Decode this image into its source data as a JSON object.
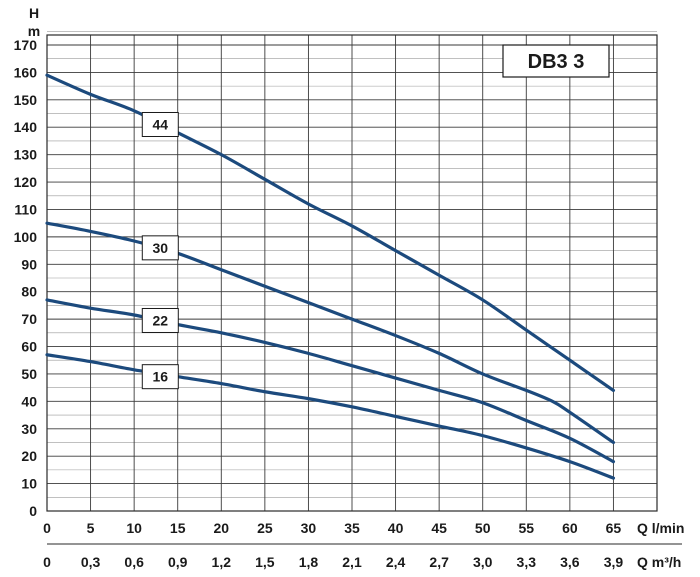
{
  "chart_data": {
    "type": "line",
    "model": "DB3 3",
    "y_axis": {
      "label_top": "H",
      "label_unit": "m",
      "range": [
        0,
        170
      ],
      "ticks": [
        0,
        10,
        20,
        30,
        40,
        50,
        60,
        70,
        80,
        90,
        100,
        110,
        120,
        130,
        140,
        150,
        160,
        170
      ]
    },
    "x_axis": {
      "label": "Q l/min",
      "range": [
        0,
        70
      ],
      "ticks": [
        0,
        5,
        10,
        15,
        20,
        25,
        30,
        35,
        40,
        45,
        50,
        55,
        60,
        65
      ]
    },
    "x_axis_secondary": {
      "label": "Q m³/h",
      "ticks": [
        "0",
        "0,3",
        "0,6",
        "0,9",
        "1,2",
        "1,5",
        "1,8",
        "2,1",
        "2,4",
        "2,7",
        "3,0",
        "3,3",
        "3,6",
        "3,9"
      ]
    },
    "grid": {
      "major": true,
      "minor_y_step": 5
    },
    "colors": {
      "curve": "#1c4a7d",
      "grid_major": "#3a3a3a",
      "grid_minor": "#9a9a9a"
    },
    "series": [
      {
        "name": "44",
        "label_at": [
          13,
          141
        ],
        "points": [
          [
            0,
            159
          ],
          [
            5,
            152
          ],
          [
            10,
            146
          ],
          [
            15,
            138
          ],
          [
            20,
            130
          ],
          [
            25,
            121
          ],
          [
            30,
            112
          ],
          [
            35,
            104
          ],
          [
            40,
            95
          ],
          [
            45,
            86
          ],
          [
            50,
            77
          ],
          [
            55,
            66
          ],
          [
            60,
            55
          ],
          [
            65,
            44
          ]
        ]
      },
      {
        "name": "30",
        "label_at": [
          13,
          96
        ],
        "points": [
          [
            0,
            105
          ],
          [
            5,
            102
          ],
          [
            10,
            98.5
          ],
          [
            15,
            94
          ],
          [
            20,
            88
          ],
          [
            25,
            82
          ],
          [
            30,
            76
          ],
          [
            35,
            70
          ],
          [
            40,
            64
          ],
          [
            45,
            57.5
          ],
          [
            50,
            50
          ],
          [
            55,
            44
          ],
          [
            58,
            40
          ],
          [
            60,
            36
          ],
          [
            65,
            25
          ]
        ]
      },
      {
        "name": "22",
        "label_at": [
          13,
          69.5
        ],
        "points": [
          [
            0,
            77
          ],
          [
            5,
            74
          ],
          [
            10,
            71.5
          ],
          [
            15,
            68
          ],
          [
            20,
            65
          ],
          [
            25,
            61.5
          ],
          [
            30,
            57.5
          ],
          [
            35,
            53
          ],
          [
            40,
            48.5
          ],
          [
            45,
            44
          ],
          [
            50,
            39.5
          ],
          [
            55,
            33
          ],
          [
            60,
            26.5
          ],
          [
            65,
            18
          ]
        ]
      },
      {
        "name": "16",
        "label_at": [
          13,
          49
        ],
        "points": [
          [
            0,
            57
          ],
          [
            5,
            54.5
          ],
          [
            10,
            51.5
          ],
          [
            15,
            49
          ],
          [
            20,
            46.5
          ],
          [
            25,
            43.5
          ],
          [
            30,
            41
          ],
          [
            35,
            38
          ],
          [
            40,
            34.5
          ],
          [
            45,
            31
          ],
          [
            50,
            27.5
          ],
          [
            55,
            23
          ],
          [
            60,
            18
          ],
          [
            65,
            12
          ]
        ]
      }
    ]
  }
}
